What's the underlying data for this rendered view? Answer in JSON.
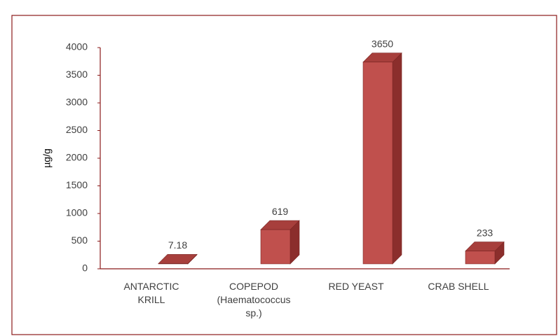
{
  "chart_data": {
    "type": "bar3d",
    "y_label": "µg/g",
    "categories": [
      "ANTARCTIC KRILL",
      "COPEPOD (Haematococcus sp.)",
      "RED YEAST",
      "CRAB SHELL"
    ],
    "values": [
      7.18,
      619,
      3650,
      233
    ],
    "color": "#c0504d",
    "ylim": [
      0,
      4000
    ],
    "yticks": [
      0,
      500,
      1000,
      1500,
      2000,
      2500,
      3000,
      3500,
      4000
    ]
  }
}
